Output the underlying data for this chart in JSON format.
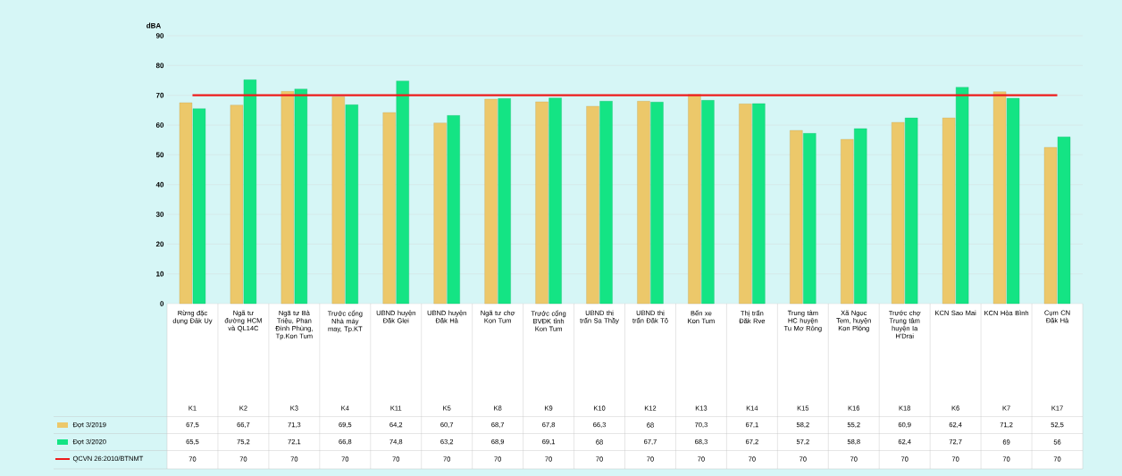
{
  "chart_data": {
    "type": "bar",
    "ylabel": "dBA",
    "categories": [
      "Rừng đặc dụng Đăk Uy",
      "Ngã tư đường HCM và QL14C",
      "Ngã tư Bà Triệu, Phan Đình Phùng, Tp.Kon Tum",
      "Trước cổng Nhà máy may, Tp.KT",
      "UBND huyện Đăk Glei",
      "UBND huyện Đăk Hà",
      "Ngã tư chợ Kon Tum",
      "Trước cổng BVĐK tỉnh Kon Tum",
      "UBND thị trấn Sa Thầy",
      "UBND thị trấn Đăk Tô",
      "Bến xe Kon Tum",
      "Thị trấn Đăk Rve",
      "Trung tâm HC huyện Tu Mơ Rông",
      "Xã Ngọc Tem, huyện Kon Plông",
      "Trước chợ Trung tâm huyện Ia H'Drai",
      "KCN Sao Mai",
      "KCN Hòa Bình",
      "Cụm CN Đăk Hà"
    ],
    "annotations": [
      "K1",
      "K2",
      "K3",
      "K4",
      "K11",
      "K5",
      "K8",
      "K9",
      "K10",
      "K12",
      "K13",
      "K14",
      "K15",
      "K16",
      "K18",
      "K6",
      "K7",
      "K17"
    ],
    "series": [
      {
        "name": "Đợt 3/2019",
        "color": "#ecc86a",
        "values": [
          67.5,
          66.7,
          71.3,
          69.5,
          64.2,
          60.7,
          68.7,
          67.8,
          66.3,
          68,
          70.3,
          67.1,
          58.2,
          55.2,
          60.9,
          62.4,
          71.2,
          52.5
        ],
        "value_labels": [
          "67,5",
          "66,7",
          "71,3",
          "69,5",
          "64,2",
          "60,7",
          "68,7",
          "67,8",
          "66,3",
          "68",
          "70,3",
          "67,1",
          "58,2",
          "55,2",
          "60,9",
          "62,4",
          "71,2",
          "52,5"
        ]
      },
      {
        "name": "Đợt 3/2020",
        "color": "#14e484",
        "values": [
          65.5,
          75.2,
          72.1,
          66.8,
          74.8,
          63.2,
          68.9,
          69.1,
          68,
          67.7,
          68.3,
          67.2,
          57.2,
          58.8,
          62.4,
          72.7,
          69,
          56
        ],
        "value_labels": [
          "65,5",
          "75,2",
          "72,1",
          "66,8",
          "74,8",
          "63,2",
          "68,9",
          "69,1",
          "68",
          "67,7",
          "68,3",
          "67,2",
          "57,2",
          "58,8",
          "62,4",
          "72,7",
          "69",
          "56"
        ]
      },
      {
        "name": "QCVN 26:2010/BTNMT",
        "type": "line",
        "color": "#ee1c1c",
        "values": [
          70,
          70,
          70,
          70,
          70,
          70,
          70,
          70,
          70,
          70,
          70,
          70,
          70,
          70,
          70,
          70,
          70,
          70
        ],
        "value_labels": [
          "70",
          "70",
          "70",
          "70",
          "70",
          "70",
          "70",
          "70",
          "70",
          "70",
          "70",
          "70",
          "70",
          "70",
          "70",
          "70",
          "70",
          "70"
        ]
      }
    ],
    "ylim": [
      0,
      90
    ],
    "yticks": [
      0,
      10,
      20,
      30,
      40,
      50,
      60,
      70,
      80,
      90
    ],
    "grid": "y",
    "legend": "bottom left"
  }
}
